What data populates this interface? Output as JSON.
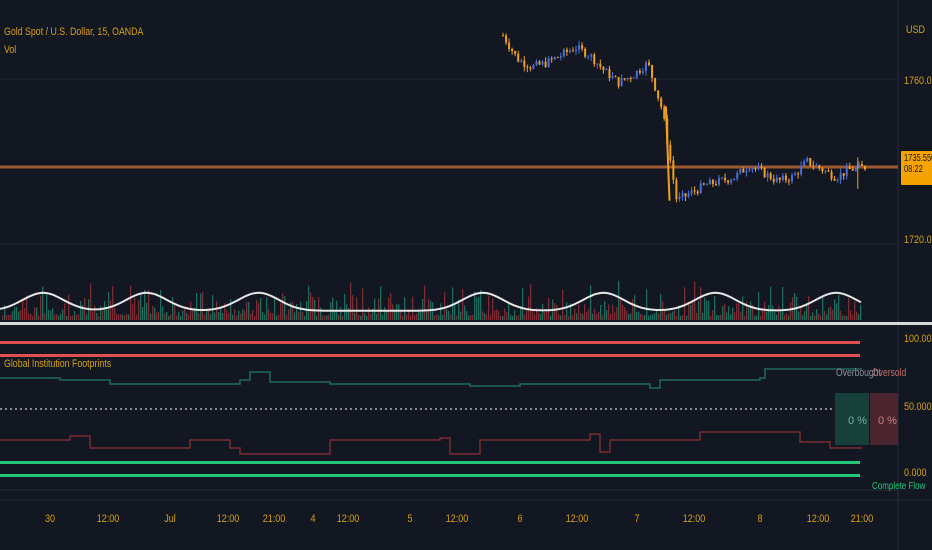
{
  "header": {
    "symbol_title": "Gold Spot / U.S. Dollar, 15, OANDA",
    "volume_label": "Vol"
  },
  "price_axis": {
    "currency_label": "USD",
    "tick_labels": [
      "1760.000",
      "1720.000"
    ],
    "last_price": "1735.550",
    "countdown": "08:22"
  },
  "indicator": {
    "title": "Global Institution Footprints",
    "axis_labels": [
      "100.000",
      "50.000",
      "0.000"
    ],
    "overbought_label": "Overbought",
    "oversold_label": "Oversold",
    "box_left_value": "0 %",
    "box_right_value": "0 %",
    "bottom_label": "Complete Flow"
  },
  "time_axis": {
    "labels": [
      "30",
      "12:00",
      "Jul",
      "12:00",
      "21:00",
      "4",
      "12:00",
      "5",
      "12:00",
      "6",
      "12:00",
      "7",
      "12:00",
      "8",
      "12:00",
      "21:00"
    ]
  },
  "colors": {
    "background": "#131722",
    "axis_text": "#d4a017",
    "candle_up": "#4a6ee0",
    "candle_down": "#f0a020",
    "horizontal_line": "#b5652f",
    "volume_up": "#1e6b5c",
    "volume_down": "#7a2b33",
    "volume_ma": "#e6e6e6",
    "ob_line": "#e05050",
    "os_line": "#22c77a"
  },
  "chart_data": {
    "type": "line",
    "title": "Gold Spot / U.S. Dollar, 15, OANDA",
    "price_series_name": "Gold Spot / U.S. Dollar",
    "price_x": [
      0,
      4,
      8,
      12,
      16,
      20,
      24,
      28,
      32,
      36,
      40,
      44,
      48,
      52,
      56,
      60,
      64,
      68,
      72,
      76,
      80,
      84,
      88,
      92,
      96,
      100
    ],
    "price_y": [
      1769,
      1763,
      1761,
      1762,
      1764,
      1766,
      1764,
      1760,
      1757,
      1759,
      1762,
      1750,
      1727,
      1729,
      1731,
      1732,
      1733,
      1736,
      1734,
      1732,
      1733,
      1737,
      1735,
      1733,
      1735,
      1735.55
    ],
    "ylim": [
      1716,
      1778
    ],
    "last_price": 1735.55,
    "horizontal_level": 1735.55,
    "volume_ma_peaks": [
      0.05,
      0.17,
      0.3,
      0.56,
      0.7,
      0.83,
      0.97
    ],
    "indicator_ylim": [
      0,
      100
    ]
  }
}
